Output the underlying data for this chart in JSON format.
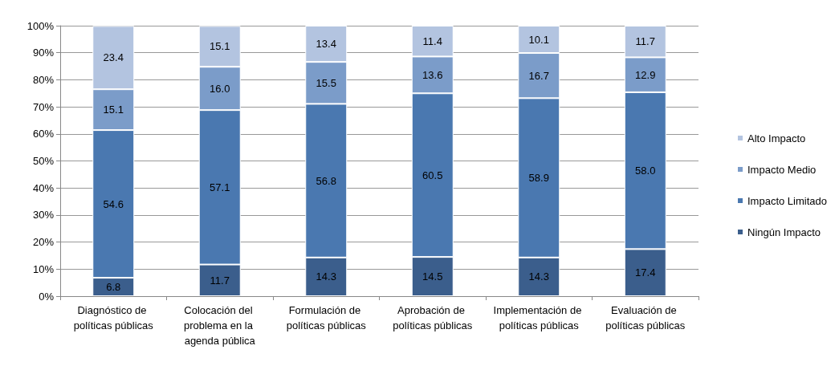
{
  "chart_data": {
    "type": "bar",
    "stacked": true,
    "categories": [
      "Diagnóstico de políticas públicas",
      "Colocación del problema en la agenda pública",
      "Formulación de políticas públicas",
      "Aprobación de políticas públicas",
      "Implementación de políticas públicas",
      "Evaluación de políticas públicas"
    ],
    "series": [
      {
        "name": "Ningún Impacto",
        "color": "#3b5e8c",
        "values": [
          6.8,
          11.7,
          14.3,
          14.5,
          14.3,
          17.4
        ],
        "value_labels": [
          "6.8",
          "11.7",
          "14.3",
          "14.5",
          "14.3",
          "17.4"
        ]
      },
      {
        "name": "Impacto Limitado",
        "color": "#4a78b0",
        "values": [
          54.6,
          57.1,
          56.8,
          60.5,
          58.9,
          58.0
        ],
        "value_labels": [
          "54.6",
          "57.1",
          "56.8",
          "60.5",
          "58.9",
          "58.0"
        ]
      },
      {
        "name": "Impacto Medio",
        "color": "#7b9cc9",
        "values": [
          15.1,
          16.0,
          15.5,
          13.6,
          16.7,
          12.9
        ],
        "value_labels": [
          "15.1",
          "16.0",
          "15.5",
          "13.6",
          "16.7",
          "12.9"
        ]
      },
      {
        "name": "Alto Impacto",
        "color": "#b3c4e0",
        "values": [
          23.4,
          15.1,
          13.4,
          11.4,
          10.1,
          11.7
        ],
        "value_labels": [
          "23.4",
          "15.1",
          "13.4",
          "11.4",
          "10.1",
          "11.7"
        ]
      }
    ],
    "ylim": [
      0,
      100
    ],
    "yticks": [
      {
        "value": 0,
        "label": "0%"
      },
      {
        "value": 10,
        "label": "10%"
      },
      {
        "value": 20,
        "label": "20%"
      },
      {
        "value": 30,
        "label": "30%"
      },
      {
        "value": 40,
        "label": "40%"
      },
      {
        "value": 50,
        "label": "50%"
      },
      {
        "value": 60,
        "label": "60%"
      },
      {
        "value": 70,
        "label": "70%"
      },
      {
        "value": 80,
        "label": "80%"
      },
      {
        "value": 90,
        "label": "90%"
      },
      {
        "value": 100,
        "label": "100%"
      }
    ],
    "grid": "y",
    "legend": "right"
  }
}
